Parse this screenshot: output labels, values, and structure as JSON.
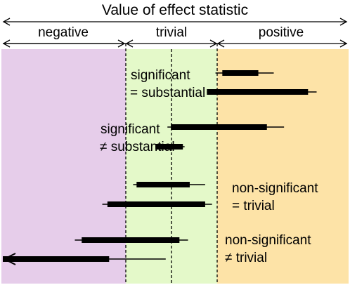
{
  "title": "Value of effect statistic",
  "regions": {
    "negative": {
      "label": "negative",
      "color": "#e6cdea"
    },
    "trivial": {
      "label": "trivial",
      "color": "#e4f9c9"
    },
    "positive": {
      "label": "positive",
      "color": "#fde3a7"
    }
  },
  "annotations": {
    "group1": {
      "line1": "significant",
      "line2": "= substantial"
    },
    "group2": {
      "line1": "significant",
      "line2": "≠ substantial"
    },
    "group3": {
      "line1": "non-significant",
      "line2": "= trivial"
    },
    "group4": {
      "line1": "non-significant",
      "line2": "≠ trivial"
    }
  },
  "intervals": [
    {
      "name": "interval-1",
      "ci_low": 0.62,
      "ci_high": 0.79,
      "box_low": 0.64,
      "box_high": 0.745
    },
    {
      "name": "interval-2",
      "ci_low": 0.595,
      "ci_high": 0.915,
      "box_low": 0.595,
      "box_high": 0.89
    },
    {
      "name": "interval-3",
      "ci_low": 0.48,
      "ci_high": 0.82,
      "box_low": 0.49,
      "box_high": 0.77
    },
    {
      "name": "interval-4",
      "ci_low": 0.445,
      "ci_high": 0.53,
      "box_low": 0.445,
      "box_high": 0.525
    },
    {
      "name": "interval-5",
      "ci_low": 0.38,
      "ci_high": 0.59,
      "box_low": 0.39,
      "box_high": 0.545
    },
    {
      "name": "interval-6",
      "ci_low": 0.29,
      "ci_high": 0.61,
      "box_low": 0.305,
      "box_high": 0.59
    },
    {
      "name": "interval-7",
      "ci_low": 0.21,
      "ci_high": 0.54,
      "box_low": 0.23,
      "box_high": 0.515
    },
    {
      "name": "interval-8",
      "ci_low": 0.0,
      "ci_high": 0.475,
      "box_low": 0.0,
      "box_high": 0.31,
      "arrow_left": true
    }
  ]
}
